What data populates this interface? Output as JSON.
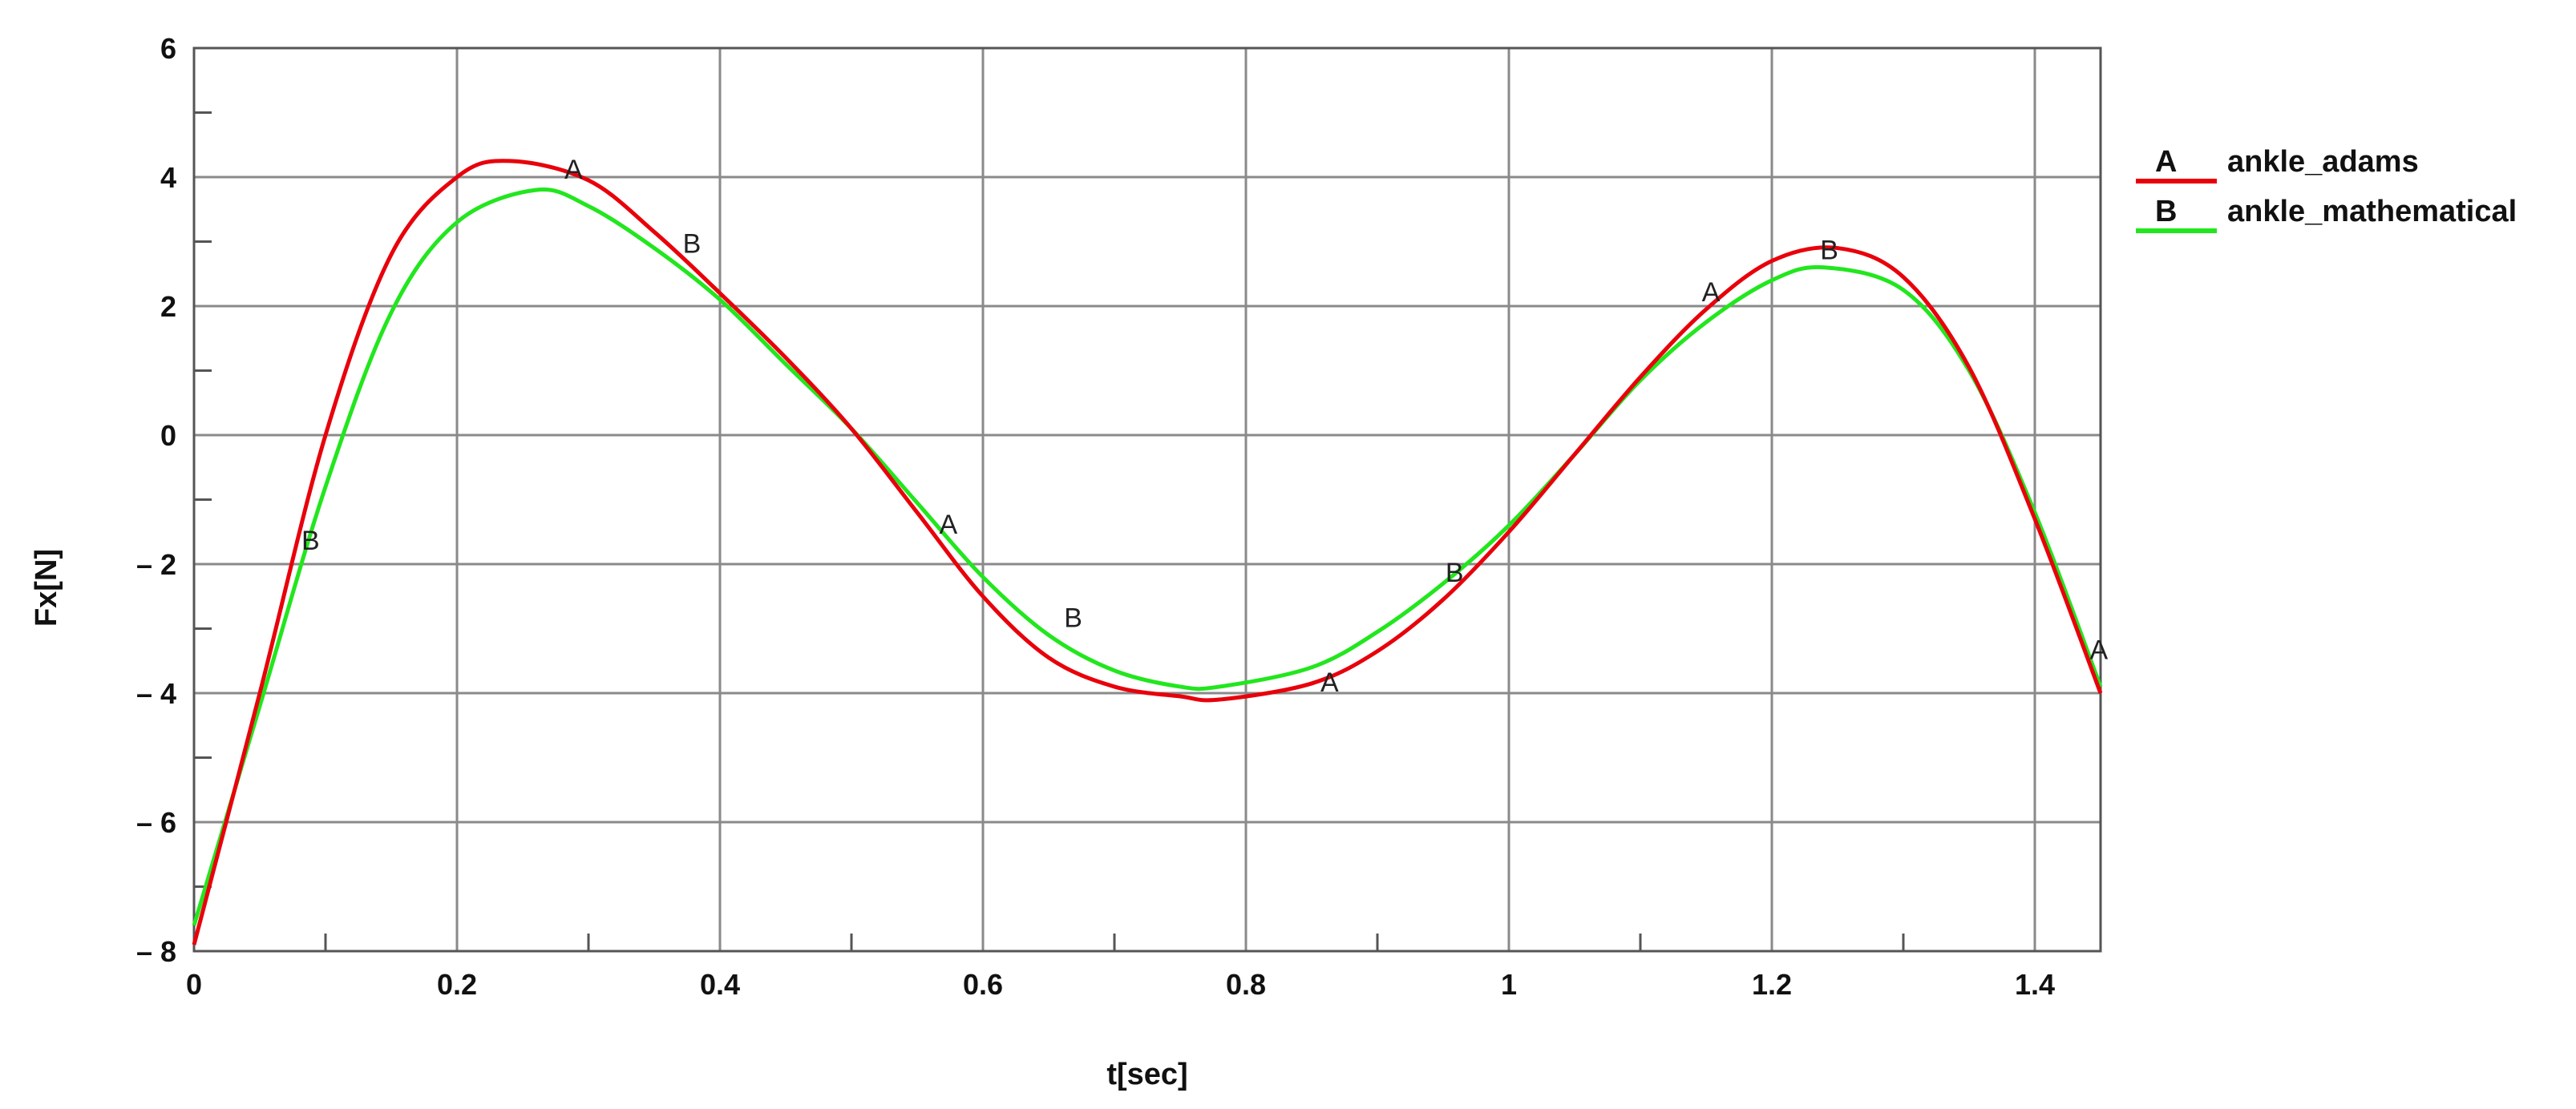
{
  "chart_data": {
    "type": "line",
    "title": "",
    "xlabel": "t[sec]",
    "ylabel": "Fx[N]",
    "xlim": [
      0,
      1.45
    ],
    "ylim": [
      -8,
      6
    ],
    "x_ticks": [
      0,
      0.2,
      0.4,
      0.6,
      0.8,
      1,
      1.2,
      1.4
    ],
    "x_tick_labels": [
      "0",
      "0.2",
      "0.4",
      "0.6",
      "0.8",
      "1",
      "1.2",
      "1.4"
    ],
    "y_ticks": [
      -8,
      -6,
      -4,
      -2,
      0,
      2,
      4,
      6
    ],
    "y_tick_labels": [
      "– 8",
      "– 6",
      "– 4",
      "– 2",
      "0",
      "2",
      "4",
      "6"
    ],
    "grid": true,
    "legend_position": "right",
    "series": [
      {
        "name": "ankle_adams",
        "marker": "A",
        "color": "#e8000b",
        "x": [
          0,
          0.05,
          0.1,
          0.15,
          0.2,
          0.24,
          0.3,
          0.35,
          0.4,
          0.45,
          0.5,
          0.55,
          0.6,
          0.65,
          0.7,
          0.75,
          0.78,
          0.85,
          0.9,
          0.95,
          1.0,
          1.05,
          1.1,
          1.15,
          1.2,
          1.25,
          1.3,
          1.35,
          1.4,
          1.45
        ],
        "y": [
          -7.9,
          -4.0,
          0.0,
          2.8,
          4.0,
          4.25,
          3.95,
          3.15,
          2.2,
          1.2,
          0.1,
          -1.2,
          -2.5,
          -3.45,
          -3.9,
          -4.05,
          -4.1,
          -3.85,
          -3.35,
          -2.55,
          -1.5,
          -0.3,
          0.9,
          1.95,
          2.7,
          2.9,
          2.45,
          1.05,
          -1.3,
          -4.0
        ],
        "marker_points": [
          [
            0.285,
            4.0
          ],
          [
            0.57,
            -1.5
          ],
          [
            0.86,
            -3.95
          ],
          [
            1.15,
            2.1
          ],
          [
            1.445,
            -3.45
          ]
        ]
      },
      {
        "name": "ankle_mathematical",
        "marker": "B",
        "color": "#22e61e",
        "x": [
          0,
          0.05,
          0.1,
          0.15,
          0.2,
          0.26,
          0.3,
          0.35,
          0.4,
          0.45,
          0.5,
          0.55,
          0.6,
          0.65,
          0.7,
          0.75,
          0.78,
          0.85,
          0.9,
          0.95,
          1.0,
          1.05,
          1.1,
          1.15,
          1.2,
          1.24,
          1.3,
          1.35,
          1.4,
          1.45
        ],
        "y": [
          -7.6,
          -4.2,
          -0.8,
          1.9,
          3.3,
          3.8,
          3.55,
          2.9,
          2.1,
          1.1,
          0.1,
          -1.05,
          -2.2,
          -3.1,
          -3.65,
          -3.9,
          -3.9,
          -3.6,
          -3.05,
          -2.3,
          -1.4,
          -0.3,
          0.85,
          1.75,
          2.4,
          2.6,
          2.25,
          1.0,
          -1.2,
          -3.9
        ],
        "marker_points": [
          [
            0.085,
            -1.75
          ],
          [
            0.375,
            2.85
          ],
          [
            0.665,
            -2.95
          ],
          [
            0.955,
            -2.25
          ],
          [
            1.24,
            2.75
          ]
        ]
      }
    ]
  }
}
